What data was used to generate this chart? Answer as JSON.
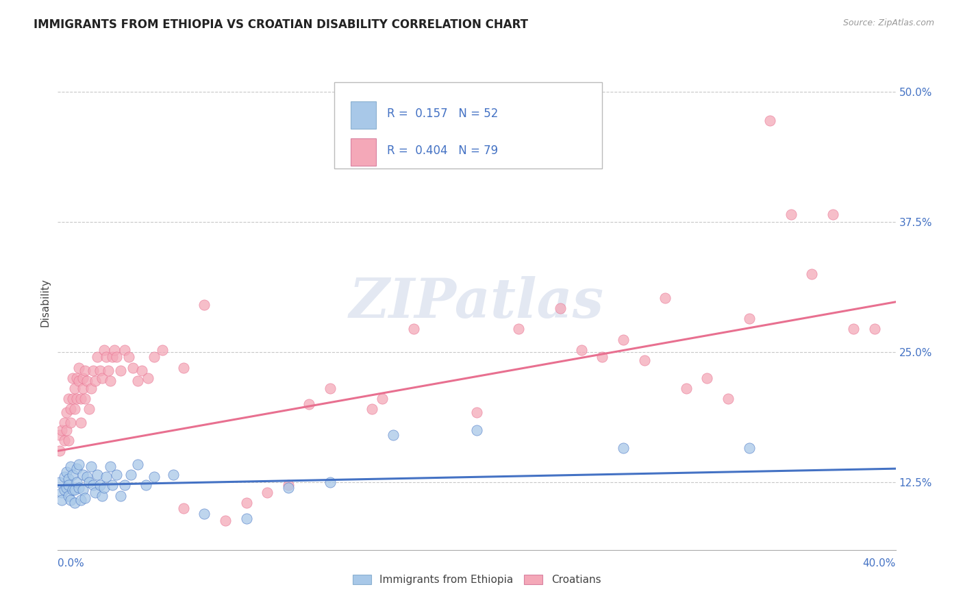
{
  "title": "IMMIGRANTS FROM ETHIOPIA VS CROATIAN DISABILITY CORRELATION CHART",
  "source_text": "Source: ZipAtlas.com",
  "ylabel": "Disability",
  "y_ticks": [
    0.125,
    0.25,
    0.375,
    0.5
  ],
  "y_tick_labels": [
    "12.5%",
    "25.0%",
    "37.5%",
    "50.0%"
  ],
  "x_min": 0.0,
  "x_max": 0.4,
  "y_min": 0.06,
  "y_max": 0.535,
  "blue_R": 0.157,
  "blue_N": 52,
  "pink_R": 0.404,
  "pink_N": 79,
  "blue_color": "#a8c8e8",
  "pink_color": "#f4a8b8",
  "blue_line_color": "#4472c4",
  "pink_line_color": "#e87090",
  "legend_blue_label": "Immigrants from Ethiopia",
  "legend_pink_label": "Croatians",
  "watermark": "ZIPatlas",
  "background_color": "#ffffff",
  "grid_color": "#c8c8c8",
  "title_color": "#222222",
  "blue_scatter_x": [
    0.001,
    0.002,
    0.002,
    0.003,
    0.003,
    0.004,
    0.004,
    0.005,
    0.005,
    0.005,
    0.006,
    0.006,
    0.007,
    0.007,
    0.008,
    0.008,
    0.009,
    0.009,
    0.01,
    0.01,
    0.011,
    0.012,
    0.012,
    0.013,
    0.014,
    0.015,
    0.016,
    0.017,
    0.018,
    0.019,
    0.02,
    0.021,
    0.022,
    0.023,
    0.025,
    0.026,
    0.028,
    0.03,
    0.032,
    0.035,
    0.038,
    0.042,
    0.046,
    0.055,
    0.07,
    0.09,
    0.11,
    0.13,
    0.16,
    0.2,
    0.27,
    0.33
  ],
  "blue_scatter_y": [
    0.125,
    0.115,
    0.108,
    0.13,
    0.118,
    0.135,
    0.12,
    0.112,
    0.128,
    0.122,
    0.108,
    0.14,
    0.118,
    0.132,
    0.105,
    0.118,
    0.125,
    0.138,
    0.142,
    0.12,
    0.108,
    0.132,
    0.118,
    0.11,
    0.13,
    0.125,
    0.14,
    0.122,
    0.115,
    0.132,
    0.122,
    0.112,
    0.12,
    0.13,
    0.14,
    0.122,
    0.132,
    0.112,
    0.122,
    0.132,
    0.142,
    0.122,
    0.13,
    0.132,
    0.095,
    0.09,
    0.12,
    0.125,
    0.17,
    0.175,
    0.158,
    0.158
  ],
  "pink_scatter_x": [
    0.001,
    0.001,
    0.002,
    0.003,
    0.003,
    0.004,
    0.004,
    0.005,
    0.005,
    0.006,
    0.006,
    0.007,
    0.007,
    0.008,
    0.008,
    0.009,
    0.009,
    0.01,
    0.01,
    0.011,
    0.011,
    0.012,
    0.012,
    0.013,
    0.013,
    0.014,
    0.015,
    0.016,
    0.017,
    0.018,
    0.019,
    0.02,
    0.021,
    0.022,
    0.023,
    0.024,
    0.025,
    0.026,
    0.027,
    0.028,
    0.03,
    0.032,
    0.034,
    0.036,
    0.038,
    0.04,
    0.043,
    0.046,
    0.05,
    0.06,
    0.07,
    0.09,
    0.11,
    0.13,
    0.15,
    0.17,
    0.2,
    0.22,
    0.24,
    0.25,
    0.26,
    0.27,
    0.28,
    0.29,
    0.3,
    0.31,
    0.32,
    0.33,
    0.34,
    0.35,
    0.36,
    0.37,
    0.38,
    0.39,
    0.06,
    0.08,
    0.1,
    0.12,
    0.155
  ],
  "pink_scatter_y": [
    0.155,
    0.17,
    0.175,
    0.165,
    0.182,
    0.192,
    0.175,
    0.165,
    0.205,
    0.182,
    0.195,
    0.205,
    0.225,
    0.195,
    0.215,
    0.205,
    0.225,
    0.235,
    0.222,
    0.182,
    0.205,
    0.215,
    0.225,
    0.232,
    0.205,
    0.222,
    0.195,
    0.215,
    0.232,
    0.222,
    0.245,
    0.232,
    0.225,
    0.252,
    0.245,
    0.232,
    0.222,
    0.245,
    0.252,
    0.245,
    0.232,
    0.252,
    0.245,
    0.235,
    0.222,
    0.232,
    0.225,
    0.245,
    0.252,
    0.235,
    0.295,
    0.105,
    0.122,
    0.215,
    0.195,
    0.272,
    0.192,
    0.272,
    0.292,
    0.252,
    0.245,
    0.262,
    0.242,
    0.302,
    0.215,
    0.225,
    0.205,
    0.282,
    0.472,
    0.382,
    0.325,
    0.382,
    0.272,
    0.272,
    0.1,
    0.088,
    0.115,
    0.2,
    0.205
  ],
  "blue_trend_x": [
    0.0,
    0.4
  ],
  "blue_trend_y": [
    0.122,
    0.138
  ],
  "pink_trend_x": [
    0.0,
    0.4
  ],
  "pink_trend_y": [
    0.155,
    0.298
  ]
}
